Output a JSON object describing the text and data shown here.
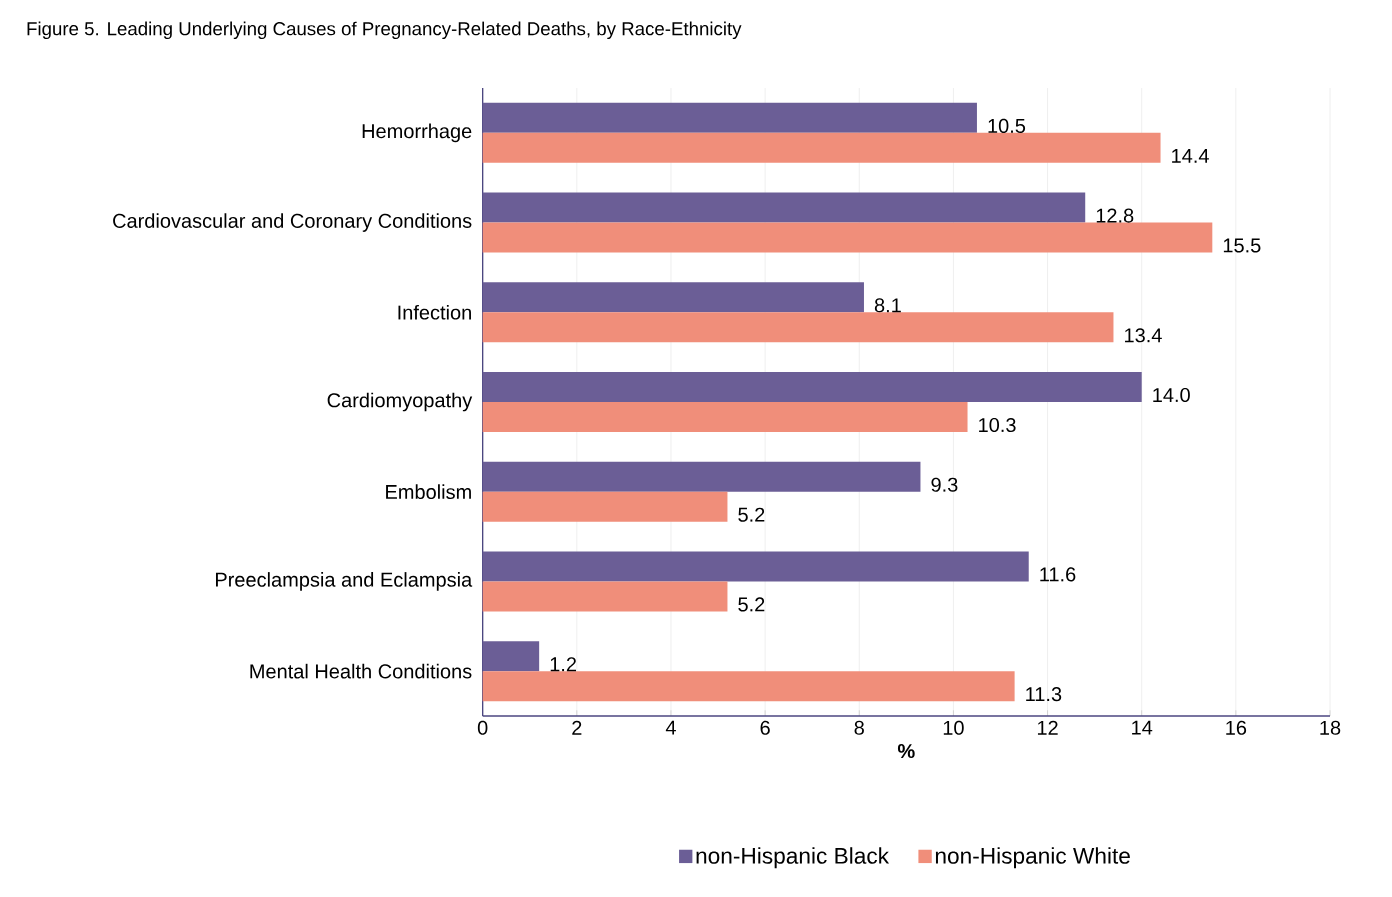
{
  "chart_data": {
    "type": "bar",
    "orientation": "horizontal",
    "title": "Figure 5. Leading Underlying Causes of Pregnancy-Related Deaths, by Race-Ethnicity",
    "xlabel": "%",
    "categories": [
      "Hemorrhage",
      "Cardiovascular and Coronary Conditions",
      "Infection",
      "Cardiomyopathy",
      "Embolism",
      "Preeclampsia and Eclampsia",
      "Mental Health Conditions"
    ],
    "series": [
      {
        "name": "non-Hispanic Black",
        "color": "#6b5e96",
        "values": [
          10.5,
          12.8,
          8.1,
          14.0,
          9.3,
          11.6,
          1.2
        ],
        "value_labels": [
          "10.5",
          "12.8",
          "8.1",
          "14.0",
          "9.3",
          "11.6",
          "1.2"
        ]
      },
      {
        "name": "non-Hispanic White",
        "color": "#f08e7a",
        "values": [
          14.4,
          15.5,
          13.4,
          10.3,
          5.2,
          5.2,
          11.3
        ],
        "value_labels": [
          "14.4",
          "15.5",
          "13.4",
          "10.3",
          "5.2",
          "5.2",
          "11.3"
        ]
      }
    ],
    "xlim": [
      0,
      18
    ],
    "xticks": [
      0,
      2,
      4,
      6,
      8,
      10,
      12,
      14,
      16,
      18
    ],
    "grid": "x",
    "legend": "bottom"
  }
}
